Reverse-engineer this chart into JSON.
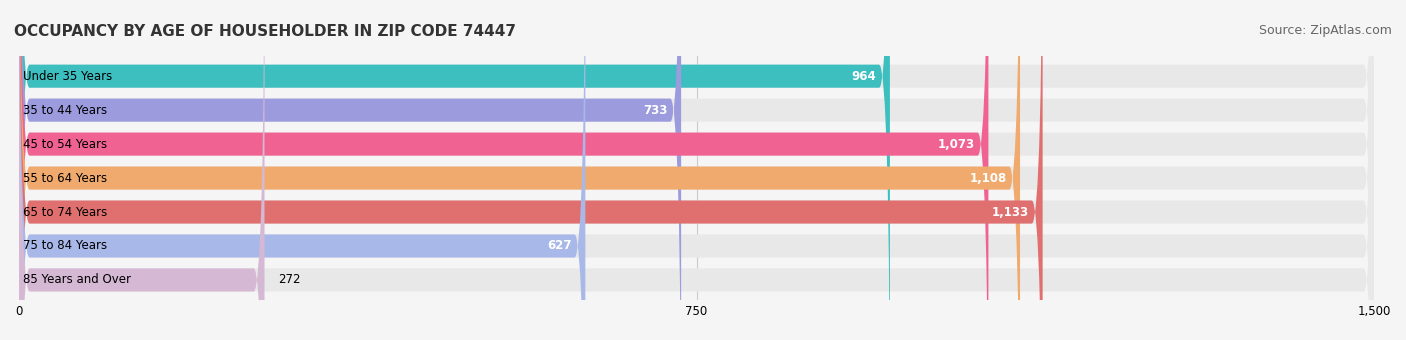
{
  "title": "OCCUPANCY BY AGE OF HOUSEHOLDER IN ZIP CODE 74447",
  "source": "Source: ZipAtlas.com",
  "categories": [
    "Under 35 Years",
    "35 to 44 Years",
    "45 to 54 Years",
    "55 to 64 Years",
    "65 to 74 Years",
    "75 to 84 Years",
    "85 Years and Over"
  ],
  "values": [
    964,
    733,
    1073,
    1108,
    1133,
    627,
    272
  ],
  "bar_colors": [
    "#3dbfbf",
    "#9b9bde",
    "#f06292",
    "#f0aa6e",
    "#e07070",
    "#a8b8e8",
    "#d4b8d4"
  ],
  "bar_label_colors": [
    "white",
    "black",
    "white",
    "white",
    "white",
    "black",
    "black"
  ],
  "xlim": [
    0,
    1500
  ],
  "xticks": [
    0,
    750,
    1500
  ],
  "background_color": "#f5f5f5",
  "bar_bg_color": "#e8e8e8",
  "title_fontsize": 11,
  "source_fontsize": 9,
  "label_fontsize": 8.5,
  "value_fontsize": 8.5
}
